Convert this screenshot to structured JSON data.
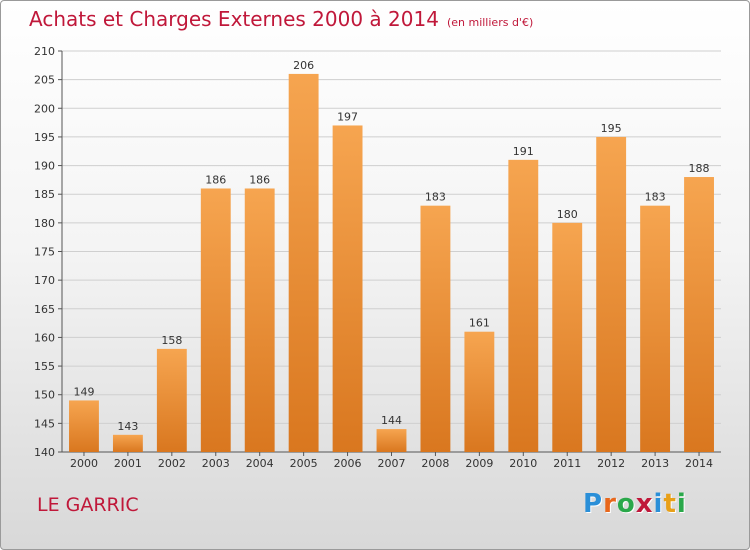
{
  "header": {
    "title": "Achats et Charges Externes 2000 à 2014",
    "subtitle": "(en milliers d'€)"
  },
  "footer": {
    "commune": "LE GARRIC",
    "logo": [
      "P",
      "r",
      "o",
      "x",
      "i",
      "t",
      "i"
    ],
    "logo_colors": [
      "#2a8fd8",
      "#e8671b",
      "#2aa84a",
      "#c0183a",
      "#2a8fd8",
      "#e8a018",
      "#2aa84a"
    ]
  },
  "chart_data": {
    "type": "bar",
    "title": "Achats et Charges Externes 2000 à 2014",
    "categories": [
      "2000",
      "2001",
      "2002",
      "2003",
      "2004",
      "2005",
      "2006",
      "2007",
      "2008",
      "2009",
      "2010",
      "2011",
      "2012",
      "2013",
      "2014"
    ],
    "values": [
      149,
      143,
      158,
      186,
      186,
      206,
      197,
      144,
      183,
      161,
      191,
      180,
      195,
      183,
      188
    ],
    "ylim": [
      140,
      210
    ],
    "yticks": [
      140,
      145,
      150,
      155,
      160,
      165,
      170,
      175,
      180,
      185,
      190,
      195,
      200,
      205,
      210
    ],
    "grid": true,
    "bar_color_top": "#f6a550",
    "bar_color_bottom": "#d9771f"
  }
}
